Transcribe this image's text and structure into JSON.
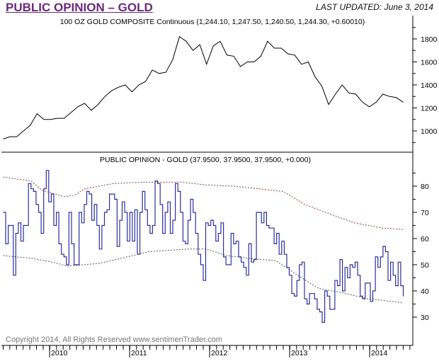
{
  "header": {
    "title": "PUBLIC OPINION – GOLD",
    "last_updated": "LAST UPDATED:  June 3, 2014"
  },
  "copyright": "Copyright 2014, All Rights Reserved  www.sentimenTrader.com",
  "chart_data": [
    {
      "type": "line",
      "title": "100 OZ GOLD COMPOSITE Continuous (1,244.10, 1,247.50, 1,240.50, 1,244.30, +0.60010)",
      "x_start": 2009.42,
      "x_end": 2014.42,
      "ylim": [
        850,
        1950
      ],
      "yticks": [
        1000,
        1200,
        1400,
        1600,
        1800
      ],
      "values": [
        930,
        950,
        950,
        1000,
        1050,
        1150,
        1100,
        1100,
        1110,
        1110,
        1160,
        1210,
        1240,
        1180,
        1230,
        1300,
        1350,
        1380,
        1400,
        1340,
        1400,
        1430,
        1530,
        1500,
        1510,
        1620,
        1820,
        1780,
        1700,
        1750,
        1580,
        1740,
        1780,
        1660,
        1650,
        1560,
        1600,
        1600,
        1650,
        1780,
        1720,
        1720,
        1670,
        1660,
        1580,
        1600,
        1470,
        1390,
        1230,
        1320,
        1400,
        1330,
        1320,
        1250,
        1210,
        1250,
        1320,
        1300,
        1290,
        1250
      ],
      "color": "#000000"
    },
    {
      "type": "line",
      "title": "PUBLIC OPINION - GOLD (37.9500, 37.9500, 37.9500, +0.000)",
      "x_start": 2009.42,
      "x_end": 2014.42,
      "ylim": [
        26,
        86
      ],
      "yticks": [
        30,
        40,
        50,
        60,
        70,
        80
      ],
      "values": [
        70,
        58,
        65,
        65,
        46,
        62,
        66,
        59,
        65,
        65,
        81,
        79,
        78,
        73,
        70,
        62,
        79,
        86,
        74,
        77,
        65,
        70,
        58,
        54,
        53,
        50,
        70,
        58,
        50,
        50,
        70,
        66,
        73,
        78,
        77,
        67,
        73,
        65,
        56,
        65,
        70,
        71,
        77,
        77,
        75,
        57,
        67,
        74,
        70,
        59,
        70,
        59,
        71,
        54,
        70,
        78,
        71,
        65,
        62,
        65,
        82,
        81,
        73,
        62,
        70,
        74,
        62,
        67,
        81,
        78,
        70,
        59,
        58,
        67,
        75,
        70,
        62,
        54,
        50,
        44,
        66,
        65,
        67,
        65,
        59,
        62,
        66,
        53,
        50,
        50,
        62,
        58,
        59,
        53,
        51,
        49,
        46,
        58,
        51,
        52,
        70,
        70,
        66,
        70,
        65,
        64,
        64,
        58,
        62,
        54,
        59,
        54,
        49,
        46,
        39,
        38,
        44,
        50,
        51,
        37,
        35,
        39,
        39,
        37,
        33,
        32,
        28,
        40,
        38,
        33,
        33,
        44,
        42,
        52,
        40,
        49,
        45,
        50,
        49,
        51,
        46,
        38,
        37,
        43,
        43,
        36,
        40,
        53,
        49,
        53,
        57,
        55,
        44,
        51,
        46,
        42,
        51,
        42,
        37.95
      ],
      "color": "#2b2f9e",
      "upper_band": [
        [
          2009.42,
          83.5
        ],
        [
          2009.77,
          82
        ],
        [
          2009.9,
          78.5
        ],
        [
          2010.18,
          76
        ],
        [
          2010.31,
          76.5
        ],
        [
          2010.44,
          79
        ],
        [
          2010.8,
          81
        ],
        [
          2011.15,
          81.5
        ],
        [
          2011.64,
          81.5
        ],
        [
          2011.95,
          80.5
        ],
        [
          2012.3,
          80
        ],
        [
          2012.92,
          78
        ],
        [
          2013.19,
          73
        ],
        [
          2013.54,
          69
        ],
        [
          2013.81,
          66
        ],
        [
          2014.16,
          64
        ],
        [
          2014.42,
          63.5
        ]
      ],
      "lower_band": [
        [
          2009.42,
          53.5
        ],
        [
          2009.77,
          52.5
        ],
        [
          2010.04,
          51
        ],
        [
          2010.22,
          49.5
        ],
        [
          2010.62,
          50.5
        ],
        [
          2010.97,
          53
        ],
        [
          2011.24,
          55
        ],
        [
          2011.73,
          56
        ],
        [
          2011.95,
          56
        ],
        [
          2012.21,
          53.5
        ],
        [
          2012.48,
          52.5
        ],
        [
          2012.83,
          51.5
        ],
        [
          2013.1,
          46
        ],
        [
          2013.36,
          41
        ],
        [
          2013.63,
          39.5
        ],
        [
          2013.98,
          37
        ],
        [
          2014.42,
          35.5
        ]
      ],
      "band_colors": {
        "upper": "#8b3a3a",
        "lower": "#555555"
      }
    },
    {
      "type": "axis",
      "xticks": [
        "2010",
        "2011",
        "2012",
        "2013",
        "2014"
      ]
    }
  ]
}
